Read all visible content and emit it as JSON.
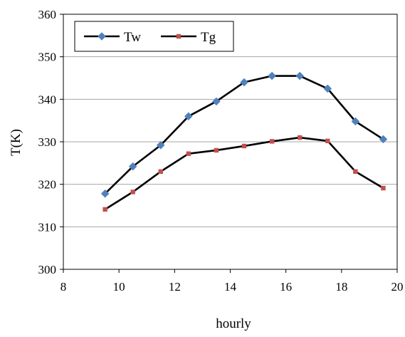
{
  "chart_data": {
    "type": "line",
    "title": "",
    "xlabel": "hourly",
    "ylabel": "T(K)",
    "xlim": [
      8,
      20
    ],
    "ylim": [
      300,
      360
    ],
    "x_ticks": [
      8,
      10,
      12,
      14,
      16,
      18,
      20
    ],
    "x_tick_labels": [
      "8",
      "10",
      "12",
      "14",
      "16",
      "18",
      "20"
    ],
    "y_ticks": [
      300,
      310,
      320,
      330,
      340,
      350,
      360
    ],
    "y_tick_labels": [
      "300",
      "310",
      "320",
      "330",
      "340",
      "350",
      "360"
    ],
    "grid": "horizontal",
    "legend": {
      "position": "top-left",
      "entries": [
        "Tw",
        "Tg"
      ]
    },
    "x": [
      9.5,
      10.5,
      11.5,
      12.5,
      13.5,
      14.5,
      15.5,
      16.5,
      17.5,
      18.5,
      19.5
    ],
    "series": [
      {
        "name": "Tw",
        "values": [
          317.8,
          324.2,
          329.2,
          336.0,
          339.5,
          344.0,
          345.5,
          345.5,
          342.5,
          334.8,
          330.6
        ],
        "marker": "diamond",
        "marker_color": "#4f81bd",
        "line_color": "#000000"
      },
      {
        "name": "Tg",
        "values": [
          314.1,
          318.2,
          323.0,
          327.2,
          328.0,
          329.0,
          330.1,
          331.0,
          330.2,
          323.0,
          319.1
        ],
        "marker": "square",
        "marker_color": "#c0504d",
        "line_color": "#000000"
      }
    ]
  }
}
